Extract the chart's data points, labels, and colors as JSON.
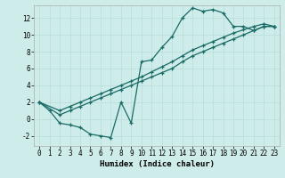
{
  "xlabel": "Humidex (Indice chaleur)",
  "ylabel": "",
  "xlim": [
    -0.5,
    23.5
  ],
  "ylim": [
    -3.2,
    13.5
  ],
  "bg_color": "#ceecea",
  "grid_color": "#b8ddd9",
  "line_color": "#1a6b65",
  "series1_x": [
    0,
    1,
    2,
    3,
    4,
    5,
    6,
    7,
    8,
    9,
    10,
    11,
    12,
    13,
    14,
    15,
    16,
    17,
    18,
    19,
    20,
    21,
    22,
    23
  ],
  "series1_y": [
    2.0,
    1.0,
    -0.5,
    -0.7,
    -1.0,
    -1.8,
    -2.0,
    -2.2,
    2.0,
    -0.5,
    6.8,
    7.0,
    8.5,
    9.8,
    12.0,
    13.2,
    12.8,
    13.0,
    12.6,
    11.0,
    11.0,
    10.5,
    11.0,
    11.0
  ],
  "series2_x": [
    0,
    2,
    3,
    4,
    5,
    6,
    7,
    8,
    9,
    10,
    11,
    12,
    13,
    14,
    15,
    16,
    17,
    18,
    19,
    20,
    21,
    22,
    23
  ],
  "series2_y": [
    2.0,
    0.5,
    1.0,
    1.5,
    2.0,
    2.5,
    3.0,
    3.5,
    4.0,
    4.5,
    5.0,
    5.5,
    6.0,
    6.8,
    7.5,
    8.0,
    8.5,
    9.0,
    9.5,
    10.0,
    10.5,
    11.0,
    11.0
  ],
  "series3_x": [
    0,
    2,
    3,
    4,
    5,
    6,
    7,
    8,
    9,
    10,
    11,
    12,
    13,
    14,
    15,
    16,
    17,
    18,
    19,
    20,
    21,
    22,
    23
  ],
  "series3_y": [
    2.0,
    1.0,
    1.5,
    2.0,
    2.5,
    3.0,
    3.5,
    4.0,
    4.5,
    5.0,
    5.6,
    6.2,
    6.8,
    7.5,
    8.2,
    8.7,
    9.2,
    9.7,
    10.2,
    10.6,
    11.0,
    11.3,
    11.0
  ],
  "xtick_labels": [
    "0",
    "1",
    "2",
    "3",
    "4",
    "5",
    "6",
    "7",
    "8",
    "9",
    "10",
    "11",
    "12",
    "13",
    "14",
    "15",
    "16",
    "17",
    "18",
    "19",
    "20",
    "21",
    "22",
    "23"
  ],
  "ytick_values": [
    -2,
    0,
    2,
    4,
    6,
    8,
    10,
    12
  ],
  "marker": "+",
  "markersize": 3,
  "linewidth": 0.9,
  "xlabel_fontsize": 6.5,
  "tick_fontsize": 5.5,
  "grid_linewidth": 0.5
}
